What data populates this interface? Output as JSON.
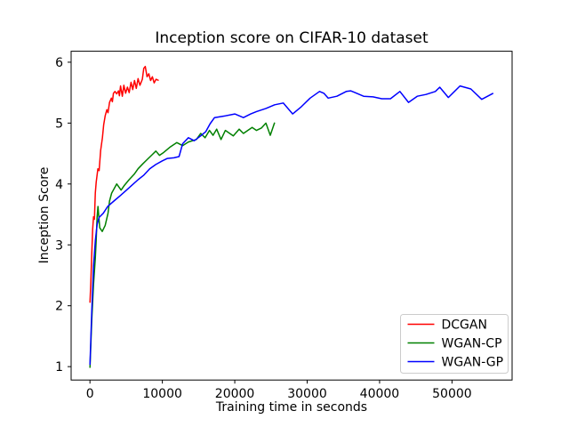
{
  "figure": {
    "background": "#ffffff",
    "frame_color": "#000000"
  },
  "chart_data": {
    "type": "line",
    "title": "Inception score on CIFAR-10 dataset",
    "xlabel": "Training time in seconds",
    "ylabel": "Inception Score",
    "xlim": [
      -2600,
      58300
    ],
    "ylim": [
      0.78,
      6.18
    ],
    "xticks": [
      0,
      10000,
      20000,
      30000,
      40000,
      50000
    ],
    "yticks": [
      1,
      2,
      3,
      4,
      5,
      6
    ],
    "grid": false,
    "legend_position": "lower right",
    "legend_entries": [
      "DCGAN",
      "WGAN-CP",
      "WGAN-GP"
    ],
    "series": [
      {
        "name": "DCGAN",
        "color": "#ff0000",
        "points": [
          [
            0,
            2.05
          ],
          [
            120,
            2.4
          ],
          [
            250,
            2.85
          ],
          [
            370,
            3.25
          ],
          [
            490,
            3.46
          ],
          [
            620,
            3.42
          ],
          [
            740,
            3.85
          ],
          [
            860,
            4.03
          ],
          [
            1100,
            4.25
          ],
          [
            1270,
            4.22
          ],
          [
            1480,
            4.55
          ],
          [
            1720,
            4.76
          ],
          [
            1890,
            4.97
          ],
          [
            2100,
            5.12
          ],
          [
            2340,
            5.22
          ],
          [
            2500,
            5.17
          ],
          [
            2710,
            5.34
          ],
          [
            2960,
            5.41
          ],
          [
            3100,
            5.35
          ],
          [
            3250,
            5.49
          ],
          [
            3450,
            5.52
          ],
          [
            3700,
            5.48
          ],
          [
            3940,
            5.53
          ],
          [
            4070,
            5.45
          ],
          [
            4230,
            5.61
          ],
          [
            4470,
            5.44
          ],
          [
            4680,
            5.62
          ],
          [
            4930,
            5.49
          ],
          [
            5170,
            5.59
          ],
          [
            5420,
            5.5
          ],
          [
            5670,
            5.67
          ],
          [
            5910,
            5.55
          ],
          [
            6160,
            5.7
          ],
          [
            6400,
            5.57
          ],
          [
            6650,
            5.73
          ],
          [
            6900,
            5.62
          ],
          [
            7230,
            5.72
          ],
          [
            7430,
            5.9
          ],
          [
            7640,
            5.93
          ],
          [
            7880,
            5.76
          ],
          [
            8130,
            5.81
          ],
          [
            8380,
            5.7
          ],
          [
            8620,
            5.76
          ],
          [
            8870,
            5.66
          ],
          [
            9120,
            5.72
          ],
          [
            9490,
            5.7
          ]
        ]
      },
      {
        "name": "WGAN-CP",
        "color": "#008000",
        "points": [
          [
            0,
            0.98
          ],
          [
            250,
            1.76
          ],
          [
            490,
            2.35
          ],
          [
            740,
            2.78
          ],
          [
            860,
            3.08
          ],
          [
            990,
            3.45
          ],
          [
            1110,
            3.63
          ],
          [
            1350,
            3.28
          ],
          [
            1700,
            3.22
          ],
          [
            2100,
            3.32
          ],
          [
            2500,
            3.52
          ],
          [
            2700,
            3.72
          ],
          [
            3000,
            3.85
          ],
          [
            3700,
            4.0
          ],
          [
            4300,
            3.9
          ],
          [
            4700,
            3.97
          ],
          [
            5400,
            4.07
          ],
          [
            6100,
            4.16
          ],
          [
            6650,
            4.25
          ],
          [
            7300,
            4.33
          ],
          [
            7900,
            4.4
          ],
          [
            8500,
            4.47
          ],
          [
            9100,
            4.54
          ],
          [
            9600,
            4.47
          ],
          [
            10100,
            4.51
          ],
          [
            11100,
            4.61
          ],
          [
            12000,
            4.68
          ],
          [
            12800,
            4.63
          ],
          [
            13600,
            4.69
          ],
          [
            14700,
            4.73
          ],
          [
            15300,
            4.83
          ],
          [
            15900,
            4.76
          ],
          [
            16500,
            4.88
          ],
          [
            17000,
            4.8
          ],
          [
            17500,
            4.9
          ],
          [
            18100,
            4.73
          ],
          [
            18700,
            4.88
          ],
          [
            19300,
            4.83
          ],
          [
            19800,
            4.79
          ],
          [
            20600,
            4.9
          ],
          [
            21200,
            4.83
          ],
          [
            21800,
            4.88
          ],
          [
            22400,
            4.93
          ],
          [
            23000,
            4.88
          ],
          [
            23700,
            4.92
          ],
          [
            24300,
            5.0
          ],
          [
            24900,
            4.8
          ],
          [
            25500,
            5.01
          ]
        ]
      },
      {
        "name": "WGAN-GP",
        "color": "#0000ff",
        "points": [
          [
            0,
            1.03
          ],
          [
            250,
            1.9
          ],
          [
            500,
            2.65
          ],
          [
            750,
            3.08
          ],
          [
            1000,
            3.34
          ],
          [
            1250,
            3.45
          ],
          [
            1850,
            3.52
          ],
          [
            2450,
            3.63
          ],
          [
            3300,
            3.72
          ],
          [
            4200,
            3.81
          ],
          [
            5050,
            3.9
          ],
          [
            5800,
            3.98
          ],
          [
            6650,
            4.07
          ],
          [
            7400,
            4.14
          ],
          [
            8250,
            4.25
          ],
          [
            9100,
            4.32
          ],
          [
            10000,
            4.38
          ],
          [
            10700,
            4.42
          ],
          [
            11600,
            4.43
          ],
          [
            12300,
            4.45
          ],
          [
            12800,
            4.66
          ],
          [
            13600,
            4.76
          ],
          [
            14400,
            4.71
          ],
          [
            15300,
            4.79
          ],
          [
            16000,
            4.86
          ],
          [
            16600,
            4.99
          ],
          [
            17200,
            5.09
          ],
          [
            18700,
            5.12
          ],
          [
            20000,
            5.15
          ],
          [
            21200,
            5.09
          ],
          [
            22200,
            5.15
          ],
          [
            23000,
            5.19
          ],
          [
            24300,
            5.24
          ],
          [
            25500,
            5.3
          ],
          [
            26700,
            5.33
          ],
          [
            28000,
            5.15
          ],
          [
            29200,
            5.27
          ],
          [
            30400,
            5.41
          ],
          [
            31700,
            5.52
          ],
          [
            32300,
            5.49
          ],
          [
            32900,
            5.41
          ],
          [
            34100,
            5.44
          ],
          [
            35400,
            5.52
          ],
          [
            36000,
            5.53
          ],
          [
            36600,
            5.5
          ],
          [
            37800,
            5.44
          ],
          [
            39100,
            5.43
          ],
          [
            40300,
            5.4
          ],
          [
            41500,
            5.4
          ],
          [
            42800,
            5.52
          ],
          [
            44000,
            5.34
          ],
          [
            45200,
            5.44
          ],
          [
            46400,
            5.47
          ],
          [
            47700,
            5.52
          ],
          [
            48300,
            5.59
          ],
          [
            49500,
            5.42
          ],
          [
            51100,
            5.61
          ],
          [
            52600,
            5.56
          ],
          [
            54100,
            5.39
          ],
          [
            55700,
            5.49
          ]
        ]
      }
    ]
  }
}
